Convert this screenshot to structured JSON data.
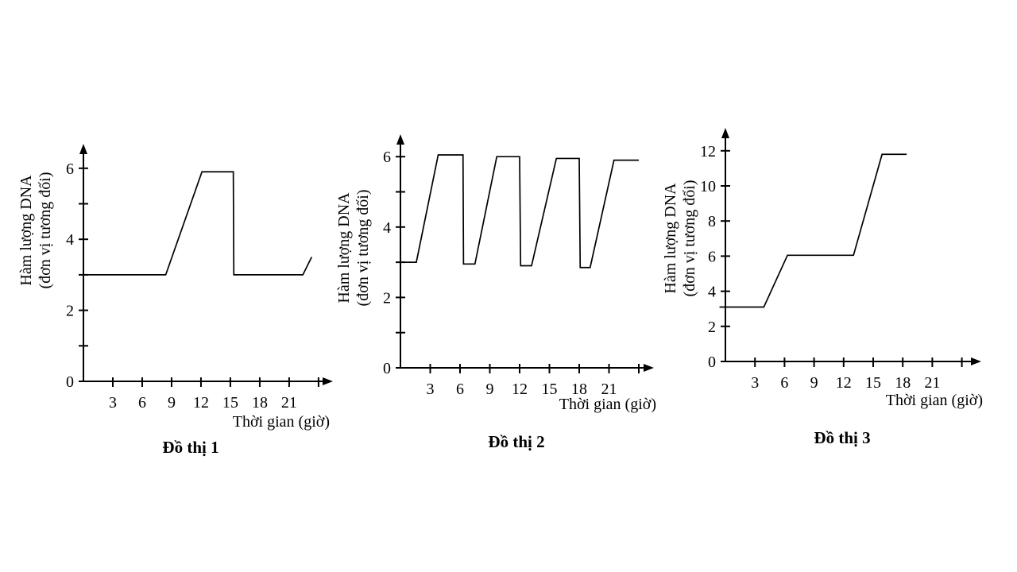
{
  "style": {
    "background": "#ffffff",
    "ink": "#000000"
  },
  "chart_data": [
    {
      "type": "line",
      "title": "Đồ thị 1",
      "xlabel": "Thời gian (giờ)",
      "ylabel": [
        "Hàm lượng DNA",
        "(đơn vị tương đối)"
      ],
      "x_ticks": [
        3,
        6,
        9,
        12,
        15,
        18,
        21
      ],
      "x_extra_ticks": [
        24
      ],
      "y_ticks_labeled": [
        0,
        2,
        4,
        6
      ],
      "y_ticks_minor": [
        1,
        3,
        5
      ],
      "xlim": [
        0,
        25
      ],
      "ylim": [
        0,
        6.4
      ],
      "grid": false,
      "legend": "none",
      "points": [
        [
          0,
          3
        ],
        [
          8.4,
          3
        ],
        [
          12.1,
          5.9
        ],
        [
          15.3,
          5.9
        ],
        [
          15.35,
          3
        ],
        [
          22.4,
          3
        ],
        [
          23.3,
          3.5
        ]
      ]
    },
    {
      "type": "line",
      "title": "Đồ thị 2",
      "xlabel": "Thời gian (giờ)",
      "ylabel": [
        "Hàm lượng DNA",
        "(đơn vị tương đối)"
      ],
      "x_ticks": [
        3,
        6,
        9,
        12,
        15,
        18,
        21
      ],
      "x_extra_ticks": [
        24
      ],
      "y_ticks_labeled": [
        0,
        2,
        4,
        6
      ],
      "y_ticks_minor": [
        1,
        3,
        5
      ],
      "xlim": [
        0,
        25
      ],
      "ylim": [
        0,
        6.4
      ],
      "grid": false,
      "legend": "none",
      "points": [
        [
          0,
          3
        ],
        [
          1.6,
          3
        ],
        [
          3.8,
          6.05
        ],
        [
          6.3,
          6.05
        ],
        [
          6.35,
          2.95
        ],
        [
          7.5,
          2.95
        ],
        [
          9.7,
          6.0
        ],
        [
          12.0,
          6.0
        ],
        [
          12.1,
          2.9
        ],
        [
          13.2,
          2.9
        ],
        [
          15.7,
          5.95
        ],
        [
          18.0,
          5.95
        ],
        [
          18.1,
          2.85
        ],
        [
          19.1,
          2.85
        ],
        [
          21.5,
          5.9
        ],
        [
          24.0,
          5.9
        ]
      ]
    },
    {
      "type": "line",
      "title": "Đồ thị 3",
      "xlabel": "Thời gian (giờ)",
      "ylabel": [
        "Hàm lượng DNA",
        "(đơn vị tương đối)"
      ],
      "x_ticks": [
        3,
        6,
        9,
        12,
        15,
        18,
        21
      ],
      "x_extra_ticks": [
        24
      ],
      "y_ticks_labeled": [
        0,
        2,
        4,
        6,
        8,
        10,
        12
      ],
      "y_ticks_minor": [],
      "xlim": [
        0,
        25
      ],
      "ylim": [
        0,
        12.9
      ],
      "grid": false,
      "legend": "none",
      "points": [
        [
          -0.6,
          3.1
        ],
        [
          3.9,
          3.1
        ],
        [
          6.3,
          6.05
        ],
        [
          13.0,
          6.05
        ],
        [
          15.9,
          11.8
        ],
        [
          18.4,
          11.8
        ]
      ]
    }
  ]
}
